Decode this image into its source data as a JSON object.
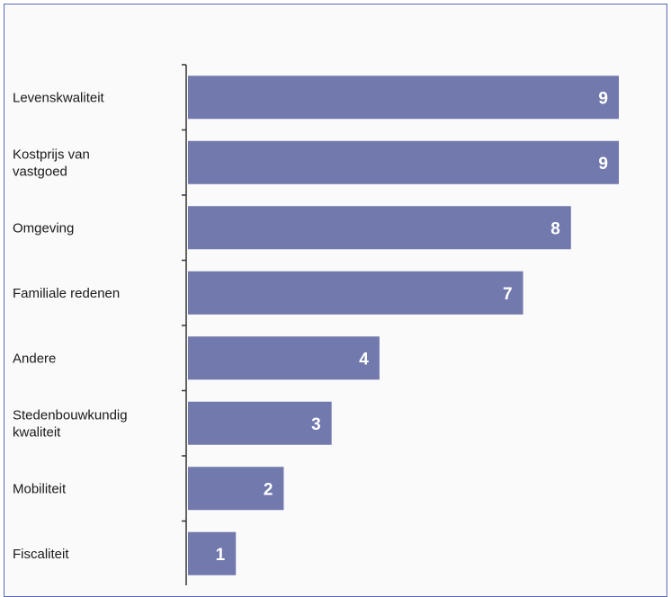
{
  "chart_data": {
    "type": "bar",
    "orientation": "horizontal",
    "categories": [
      [
        "Levenskwaliteit"
      ],
      [
        "Kostprijs van",
        "vastgoed"
      ],
      [
        "Omgeving"
      ],
      [
        "Familiale redenen"
      ],
      [
        "Andere"
      ],
      [
        "Stedenbouwkundig",
        "kwaliteit"
      ],
      [
        "Mobiliteit"
      ],
      [
        "Fiscaliteit"
      ]
    ],
    "values": [
      9,
      9,
      8,
      7,
      4,
      3,
      2,
      1
    ],
    "xlim": [
      0,
      9
    ],
    "grid": false,
    "bar_color": "#7279ad",
    "axis_color": "#333333"
  }
}
